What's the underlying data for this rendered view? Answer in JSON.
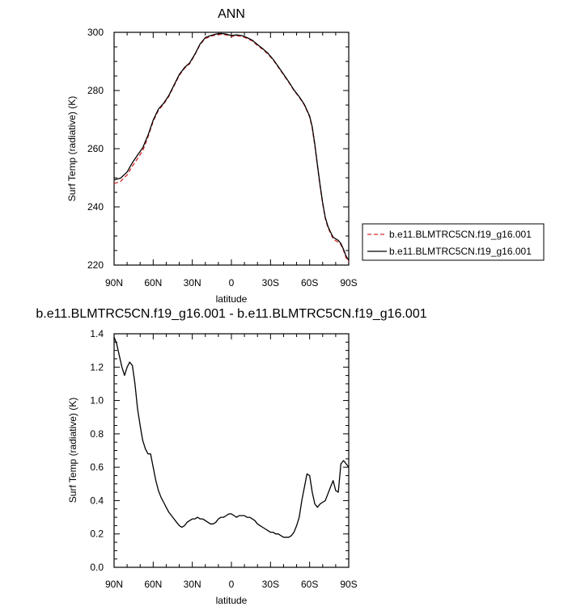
{
  "chart_data": [
    {
      "type": "line",
      "title": "ANN",
      "xlabel": "latitude",
      "ylabel": "Surf Temp (radiative) (K)",
      "ylim": [
        220,
        300
      ],
      "xlim": [
        90,
        -90
      ],
      "x_ticks": [
        90,
        60,
        30,
        0,
        -30,
        -60,
        -90
      ],
      "x_tick_labels": [
        "90N",
        "60N",
        "30N",
        "0",
        "30S",
        "60S",
        "90S"
      ],
      "y_ticks": [
        220,
        240,
        260,
        280,
        300
      ],
      "y_tick_labels": [
        "220",
        "240",
        "260",
        "280",
        "300"
      ],
      "legend_position": "right",
      "series": [
        {
          "name": "b.e11.BLMTRC5CN.f19_g16.001",
          "color": "#d62728",
          "dash": "dashed",
          "x": [
            90,
            85,
            80,
            76,
            72,
            68,
            64,
            60,
            56,
            52,
            48,
            44,
            40,
            36,
            32,
            28,
            24,
            20,
            16,
            12,
            8,
            4,
            0,
            -4,
            -8,
            -12,
            -16,
            -20,
            -24,
            -28,
            -32,
            -36,
            -40,
            -44,
            -48,
            -52,
            -56,
            -60,
            -62,
            -64,
            -66,
            -68,
            -70,
            -72,
            -74,
            -76,
            -78,
            -80,
            -82,
            -84,
            -86,
            -88,
            -90
          ],
          "y": [
            248.0,
            248.8,
            251.0,
            254.0,
            256.6,
            259.3,
            264.0,
            269.4,
            273.2,
            275.3,
            278.0,
            281.6,
            285.2,
            287.6,
            289.2,
            292.3,
            295.8,
            297.9,
            298.6,
            299.1,
            299.3,
            299.1,
            298.6,
            298.8,
            298.6,
            297.9,
            297.0,
            295.5,
            294.1,
            292.5,
            290.5,
            288.0,
            285.4,
            282.8,
            280.0,
            277.7,
            275.0,
            270.9,
            267.0,
            261.0,
            254.0,
            247.0,
            241.0,
            236.0,
            233.0,
            231.0,
            229.0,
            228.4,
            227.9,
            227.0,
            225.0,
            222.5,
            221.0
          ]
        },
        {
          "name": "b.e11.BLMTRC5CN.f19_g16.001",
          "color": "#000000",
          "dash": "solid",
          "x": [
            90,
            85,
            80,
            76,
            72,
            68,
            64,
            60,
            56,
            52,
            48,
            44,
            40,
            36,
            32,
            28,
            24,
            20,
            16,
            12,
            8,
            4,
            0,
            -4,
            -8,
            -12,
            -16,
            -20,
            -24,
            -28,
            -32,
            -36,
            -40,
            -44,
            -48,
            -52,
            -56,
            -60,
            -62,
            -64,
            -66,
            -68,
            -70,
            -72,
            -74,
            -76,
            -78,
            -80,
            -82,
            -84,
            -86,
            -88,
            -90
          ],
          "y": [
            249.3,
            249.9,
            252.0,
            255.2,
            257.8,
            260.3,
            264.6,
            269.8,
            273.6,
            275.6,
            278.3,
            281.9,
            285.5,
            287.9,
            289.5,
            292.5,
            296.0,
            298.2,
            298.9,
            299.4,
            299.6,
            299.4,
            298.9,
            299.1,
            298.9,
            298.2,
            297.3,
            295.8,
            294.4,
            292.8,
            290.7,
            288.2,
            285.6,
            283.0,
            280.2,
            277.9,
            275.2,
            271.2,
            267.5,
            261.5,
            254.5,
            247.5,
            241.4,
            236.4,
            233.4,
            231.4,
            229.6,
            229.0,
            228.5,
            227.4,
            225.4,
            223.0,
            221.6
          ]
        }
      ]
    },
    {
      "type": "line",
      "title": "b.e11.BLMTRC5CN.f19_g16.001 - b.e11.BLMTRC5CN.f19_g16.001",
      "xlabel": "latitude",
      "ylabel": "Surf Temp (radiative) (K)",
      "ylim": [
        0.0,
        1.4
      ],
      "xlim": [
        90,
        -90
      ],
      "x_ticks": [
        90,
        60,
        30,
        0,
        -30,
        -60,
        -90
      ],
      "x_tick_labels": [
        "90N",
        "60N",
        "30N",
        "0",
        "30S",
        "60S",
        "90S"
      ],
      "y_ticks": [
        0.0,
        0.2,
        0.4,
        0.6,
        0.8,
        1.0,
        1.2,
        1.4
      ],
      "y_tick_labels": [
        "0.0",
        "0.2",
        "0.4",
        "0.6",
        "0.8",
        "1.0",
        "1.2",
        "1.4"
      ],
      "series": [
        {
          "color": "#000000",
          "dash": "solid",
          "x": [
            90,
            88,
            86,
            84,
            82,
            80,
            78,
            76,
            74,
            72,
            70,
            68,
            66,
            64,
            62,
            60,
            58,
            56,
            54,
            52,
            50,
            48,
            46,
            44,
            42,
            40,
            38,
            36,
            34,
            32,
            30,
            28,
            26,
            24,
            22,
            20,
            18,
            16,
            14,
            12,
            10,
            8,
            6,
            4,
            2,
            0,
            -2,
            -4,
            -6,
            -8,
            -10,
            -12,
            -14,
            -16,
            -18,
            -20,
            -22,
            -24,
            -26,
            -28,
            -30,
            -32,
            -34,
            -36,
            -38,
            -40,
            -42,
            -44,
            -46,
            -48,
            -50,
            -52,
            -54,
            -56,
            -58,
            -60,
            -62,
            -64,
            -66,
            -68,
            -70,
            -72,
            -74,
            -76,
            -78,
            -80,
            -82,
            -84,
            -86,
            -88,
            -90
          ],
          "y": [
            1.38,
            1.34,
            1.27,
            1.2,
            1.15,
            1.2,
            1.23,
            1.21,
            1.1,
            0.95,
            0.85,
            0.76,
            0.71,
            0.68,
            0.68,
            0.6,
            0.52,
            0.46,
            0.42,
            0.39,
            0.36,
            0.33,
            0.31,
            0.29,
            0.27,
            0.25,
            0.24,
            0.25,
            0.27,
            0.28,
            0.29,
            0.29,
            0.3,
            0.29,
            0.29,
            0.28,
            0.27,
            0.26,
            0.26,
            0.27,
            0.29,
            0.3,
            0.3,
            0.31,
            0.32,
            0.32,
            0.31,
            0.3,
            0.31,
            0.31,
            0.31,
            0.3,
            0.3,
            0.29,
            0.28,
            0.26,
            0.25,
            0.24,
            0.23,
            0.22,
            0.21,
            0.21,
            0.2,
            0.2,
            0.19,
            0.18,
            0.18,
            0.18,
            0.19,
            0.21,
            0.25,
            0.3,
            0.4,
            0.48,
            0.56,
            0.55,
            0.45,
            0.38,
            0.36,
            0.38,
            0.39,
            0.4,
            0.44,
            0.48,
            0.52,
            0.46,
            0.45,
            0.62,
            0.64,
            0.62,
            0.6
          ]
        }
      ]
    }
  ]
}
